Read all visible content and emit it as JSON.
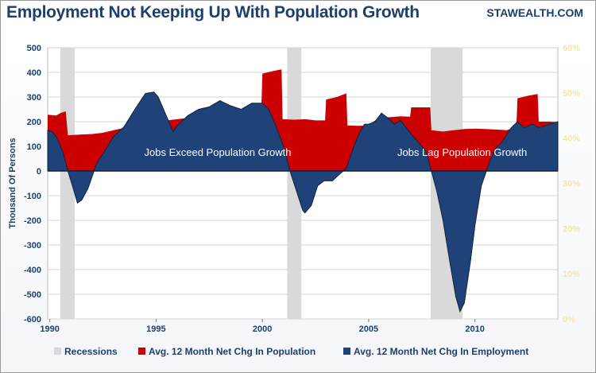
{
  "header": {
    "title": "Employment Not Keeping Up With Population Growth",
    "brand": "STAWEALTH.COM"
  },
  "colors": {
    "population": "#cc0000",
    "employment": "#1f4278",
    "recession": "#d9d9d9",
    "axis_text": "#1f3e6e",
    "right_axis_text": "#f2e8a6"
  },
  "chart_data": {
    "type": "area",
    "title": "Employment Not Keeping Up With Population Growth",
    "xlabel": "",
    "ylabel": "Thousand Of Persons",
    "xlim": [
      1989.9,
      2013.9
    ],
    "ylim": [
      -600,
      500
    ],
    "y_ticks": [
      500,
      400,
      300,
      200,
      100,
      0,
      -100,
      -200,
      -300,
      -400,
      -500,
      -600
    ],
    "x_ticks": [
      1990,
      1995,
      2000,
      2005,
      2010
    ],
    "y2_ticks": [
      "60%",
      "50%",
      "40%",
      "30%",
      "20%",
      "10%",
      "0%"
    ],
    "grid": true,
    "legend_position": "bottom",
    "recessions": [
      [
        1990.5,
        1991.17
      ],
      [
        2001.17,
        2001.83
      ],
      [
        2007.92,
        2009.42
      ]
    ],
    "series": [
      {
        "name": "Avg. 12 Month Net Chg In Population",
        "style": "step-area",
        "points": [
          [
            1989.9,
            228
          ],
          [
            1990.3,
            225
          ],
          [
            1990.5,
            235
          ],
          [
            1990.75,
            242
          ],
          [
            1990.85,
            145
          ],
          [
            1991.5,
            148
          ],
          [
            1992.0,
            150
          ],
          [
            1992.5,
            155
          ],
          [
            1993.0,
            165
          ],
          [
            1993.5,
            175
          ],
          [
            1994.0,
            185
          ],
          [
            1994.5,
            195
          ],
          [
            1995.0,
            205
          ],
          [
            1995.5,
            205
          ],
          [
            1996.0,
            210
          ],
          [
            1996.5,
            215
          ],
          [
            1997.0,
            222
          ],
          [
            1997.5,
            225
          ],
          [
            1998.0,
            228
          ],
          [
            1998.5,
            232
          ],
          [
            1999.0,
            236
          ],
          [
            1999.5,
            240
          ],
          [
            1999.95,
            250
          ],
          [
            2000.0,
            395
          ],
          [
            2000.5,
            405
          ],
          [
            2000.9,
            412
          ],
          [
            2000.95,
            210
          ],
          [
            2001.5,
            208
          ],
          [
            2002.0,
            210
          ],
          [
            2002.5,
            205
          ],
          [
            2002.95,
            205
          ],
          [
            2003.0,
            290
          ],
          [
            2003.5,
            300
          ],
          [
            2003.95,
            315
          ],
          [
            2004.0,
            185
          ],
          [
            2004.5,
            183
          ],
          [
            2005.0,
            185
          ],
          [
            2005.5,
            218
          ],
          [
            2006.0,
            218
          ],
          [
            2006.5,
            222
          ],
          [
            2006.95,
            220
          ],
          [
            2007.0,
            258
          ],
          [
            2007.9,
            258
          ],
          [
            2007.95,
            165
          ],
          [
            2008.5,
            160
          ],
          [
            2009.0,
            165
          ],
          [
            2009.5,
            170
          ],
          [
            2010.0,
            172
          ],
          [
            2010.5,
            170
          ],
          [
            2011.0,
            168
          ],
          [
            2011.5,
            165
          ],
          [
            2011.95,
            180
          ],
          [
            2012.0,
            295
          ],
          [
            2012.5,
            305
          ],
          [
            2012.95,
            312
          ],
          [
            2013.0,
            200
          ],
          [
            2013.5,
            200
          ],
          [
            2013.9,
            198
          ]
        ]
      },
      {
        "name": "Avg. 12 Month Net Chg In Employment",
        "style": "area",
        "points": [
          [
            1989.9,
            165
          ],
          [
            1990.1,
            160
          ],
          [
            1990.3,
            140
          ],
          [
            1990.6,
            80
          ],
          [
            1990.85,
            0
          ],
          [
            1991.1,
            -70
          ],
          [
            1991.3,
            -130
          ],
          [
            1991.5,
            -118
          ],
          [
            1991.8,
            -70
          ],
          [
            1992.0,
            -20
          ],
          [
            1992.2,
            30
          ],
          [
            1992.5,
            70
          ],
          [
            1993.0,
            140
          ],
          [
            1993.5,
            180
          ],
          [
            1994.0,
            250
          ],
          [
            1994.5,
            315
          ],
          [
            1994.9,
            320
          ],
          [
            1995.1,
            300
          ],
          [
            1995.4,
            240
          ],
          [
            1995.8,
            160
          ],
          [
            1996.0,
            185
          ],
          [
            1996.5,
            225
          ],
          [
            1997.0,
            250
          ],
          [
            1997.5,
            260
          ],
          [
            1998.0,
            285
          ],
          [
            1998.5,
            265
          ],
          [
            1999.0,
            250
          ],
          [
            1999.5,
            275
          ],
          [
            2000.0,
            275
          ],
          [
            2000.3,
            250
          ],
          [
            2000.6,
            190
          ],
          [
            2001.0,
            100
          ],
          [
            2001.3,
            0
          ],
          [
            2001.6,
            -80
          ],
          [
            2001.9,
            -160
          ],
          [
            2002.0,
            -170
          ],
          [
            2002.3,
            -140
          ],
          [
            2002.6,
            -60
          ],
          [
            2002.9,
            -40
          ],
          [
            2003.3,
            -40
          ],
          [
            2003.6,
            -15
          ],
          [
            2003.95,
            10
          ],
          [
            2004.3,
            100
          ],
          [
            2004.6,
            160
          ],
          [
            2004.8,
            190
          ],
          [
            2005.0,
            190
          ],
          [
            2005.3,
            200
          ],
          [
            2005.6,
            235
          ],
          [
            2005.9,
            215
          ],
          [
            2006.2,
            190
          ],
          [
            2006.5,
            205
          ],
          [
            2006.9,
            160
          ],
          [
            2007.3,
            120
          ],
          [
            2007.7,
            80
          ],
          [
            2007.95,
            0
          ],
          [
            2008.2,
            -80
          ],
          [
            2008.5,
            -200
          ],
          [
            2008.8,
            -360
          ],
          [
            2009.1,
            -510
          ],
          [
            2009.3,
            -570
          ],
          [
            2009.5,
            -535
          ],
          [
            2009.8,
            -360
          ],
          [
            2010.0,
            -220
          ],
          [
            2010.3,
            -60
          ],
          [
            2010.7,
            40
          ],
          [
            2011.0,
            95
          ],
          [
            2011.3,
            120
          ],
          [
            2011.7,
            175
          ],
          [
            2012.0,
            200
          ],
          [
            2012.3,
            175
          ],
          [
            2012.7,
            190
          ],
          [
            2013.0,
            175
          ],
          [
            2013.5,
            190
          ],
          [
            2013.9,
            200
          ]
        ]
      }
    ],
    "annotations": [
      {
        "text": "Jobs Exceed Population Growth",
        "x": 1997.9,
        "y": 62
      },
      {
        "text": "Jobs Lag Population Growth",
        "x": 2009.4,
        "y": 62
      }
    ],
    "legend": [
      {
        "label": "Recessions",
        "color": "#d9d9d9"
      },
      {
        "label": "Avg. 12 Month Net Chg In Population",
        "color": "#cc0000"
      },
      {
        "label": "Avg. 12 Month Net Chg In Employment",
        "color": "#1f4278"
      }
    ]
  }
}
